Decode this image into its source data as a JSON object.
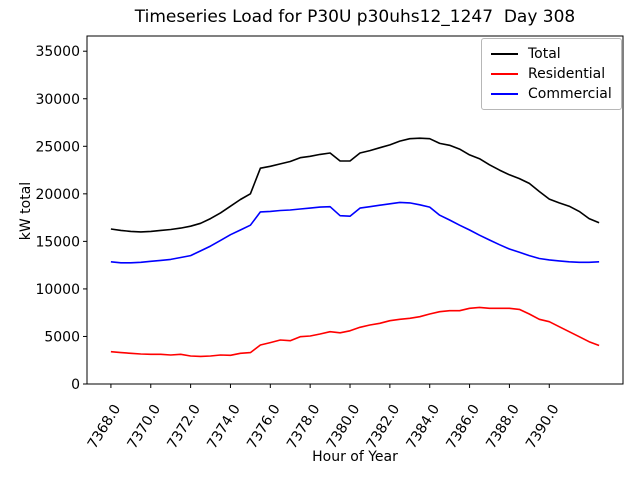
{
  "title": "Timeseries Load for P30U p30uhs12_1247  Day 308",
  "chart_data": {
    "type": "line",
    "title": "Timeseries Load for P30U p30uhs12_1247  Day 308",
    "xlabel": "Hour of Year",
    "ylabel": "kW total",
    "grid": false,
    "legend_position": "upper right",
    "xlim": [
      7366.8,
      7393.7
    ],
    "ylim": [
      0,
      36600
    ],
    "xticks": {
      "values": [
        7368,
        7370,
        7372,
        7374,
        7376,
        7378,
        7380,
        7382,
        7384,
        7386,
        7388,
        7390
      ],
      "labels": [
        "7368.0",
        "7370.0",
        "7372.0",
        "7374.0",
        "7376.0",
        "7378.0",
        "7380.0",
        "7382.0",
        "7384.0",
        "7386.0",
        "7388.0",
        "7390.0"
      ]
    },
    "yticks": {
      "values": [
        0,
        5000,
        10000,
        15000,
        20000,
        25000,
        30000,
        35000
      ],
      "labels": [
        "0",
        "5000",
        "10000",
        "15000",
        "20000",
        "25000",
        "30000",
        "35000"
      ]
    },
    "x": [
      7368.0,
      7368.5,
      7369.0,
      7369.5,
      7370.0,
      7370.5,
      7371.0,
      7371.5,
      7372.0,
      7372.5,
      7373.0,
      7373.5,
      7374.0,
      7374.5,
      7375.0,
      7375.5,
      7376.0,
      7376.5,
      7377.0,
      7377.5,
      7378.0,
      7378.5,
      7379.0,
      7379.5,
      7380.0,
      7380.5,
      7381.0,
      7381.5,
      7382.0,
      7382.5,
      7383.0,
      7383.5,
      7384.0,
      7384.5,
      7385.0,
      7385.5,
      7386.0,
      7386.5,
      7387.0,
      7387.5,
      7388.0,
      7388.5,
      7389.0,
      7389.5,
      7390.0,
      7390.5,
      7391.0,
      7391.5,
      7392.0,
      7392.5
    ],
    "series": [
      {
        "name": "Total",
        "color": "#000000",
        "values": [
          16300,
          16150,
          16050,
          16000,
          16050,
          16150,
          16250,
          16400,
          16600,
          16900,
          17400,
          18000,
          18700,
          19400,
          20000,
          22700,
          22900,
          23150,
          23400,
          23800,
          23950,
          24150,
          24300,
          23450,
          23450,
          24300,
          24550,
          24850,
          25150,
          25550,
          25800,
          25850,
          25800,
          25300,
          25100,
          24700,
          24100,
          23700,
          23050,
          22500,
          22000,
          21600,
          21100,
          20250,
          19450,
          19050,
          18700,
          18150,
          17400,
          16950
        ]
      },
      {
        "name": "Residential",
        "color": "#ff0000",
        "values": [
          3400,
          3300,
          3230,
          3150,
          3120,
          3120,
          3050,
          3120,
          2950,
          2900,
          2950,
          3050,
          3020,
          3230,
          3300,
          4100,
          4350,
          4630,
          4550,
          4970,
          5050,
          5260,
          5500,
          5390,
          5600,
          5960,
          6200,
          6380,
          6660,
          6800,
          6910,
          7080,
          7360,
          7600,
          7710,
          7710,
          7960,
          8060,
          7960,
          7960,
          7960,
          7850,
          7360,
          6800,
          6550,
          6030,
          5500,
          4970,
          4450,
          4050
        ]
      },
      {
        "name": "Commercial",
        "color": "#0000ff",
        "values": [
          12850,
          12750,
          12750,
          12800,
          12900,
          13000,
          13100,
          13300,
          13500,
          14000,
          14500,
          15100,
          15700,
          16200,
          16700,
          18100,
          18150,
          18250,
          18300,
          18400,
          18500,
          18600,
          18650,
          17700,
          17650,
          18500,
          18650,
          18800,
          18950,
          19100,
          19050,
          18850,
          18600,
          17750,
          17250,
          16700,
          16200,
          15650,
          15150,
          14650,
          14200,
          13850,
          13500,
          13200,
          13050,
          12950,
          12850,
          12800,
          12800,
          12850
        ]
      }
    ]
  }
}
